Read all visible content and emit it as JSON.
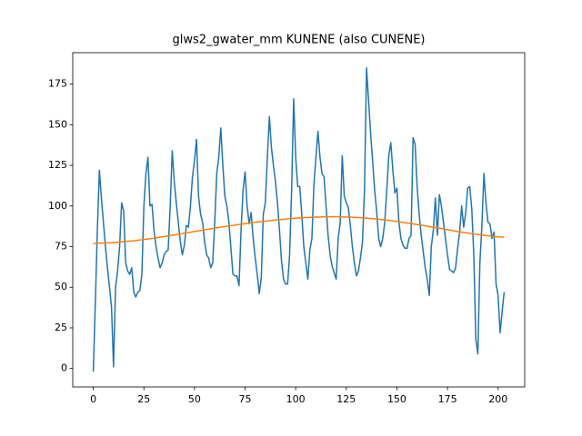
{
  "chart_data": {
    "type": "line",
    "title": "glws2_gwater_mm KUNENE (also CUNENE)",
    "x": [
      0,
      1,
      2,
      3,
      4,
      5,
      6,
      7,
      8,
      9,
      10,
      11,
      12,
      13,
      14,
      15,
      16,
      17,
      18,
      19,
      20,
      21,
      22,
      23,
      24,
      25,
      26,
      27,
      28,
      29,
      30,
      31,
      32,
      33,
      34,
      35,
      36,
      37,
      38,
      39,
      40,
      41,
      42,
      43,
      44,
      45,
      46,
      47,
      48,
      49,
      50,
      51,
      52,
      53,
      54,
      55,
      56,
      57,
      58,
      59,
      60,
      61,
      62,
      63,
      64,
      65,
      66,
      67,
      68,
      69,
      70,
      71,
      72,
      73,
      74,
      75,
      76,
      77,
      78,
      79,
      80,
      81,
      82,
      83,
      84,
      85,
      86,
      87,
      88,
      89,
      90,
      91,
      92,
      93,
      94,
      95,
      96,
      97,
      98,
      99,
      100,
      101,
      102,
      103,
      104,
      105,
      106,
      107,
      108,
      109,
      110,
      111,
      112,
      113,
      114,
      115,
      116,
      117,
      118,
      119,
      120,
      121,
      122,
      123,
      124,
      125,
      126,
      127,
      128,
      129,
      130,
      131,
      132,
      133,
      134,
      135,
      136,
      137,
      138,
      139,
      140,
      141,
      142,
      143,
      144,
      145,
      146,
      147,
      148,
      149,
      150,
      151,
      152,
      153,
      154,
      155,
      156,
      157,
      158,
      159,
      160,
      161,
      162,
      163,
      164,
      165,
      166,
      167,
      168,
      169,
      170,
      171,
      172,
      173,
      174,
      175,
      176,
      177,
      178,
      179,
      180,
      181,
      182,
      183,
      184,
      185,
      186,
      187,
      188,
      189,
      190,
      191,
      192,
      193,
      194,
      195,
      196,
      197,
      198,
      199,
      200,
      201,
      202,
      203
    ],
    "series": [
      {
        "color": "#1f77b4",
        "values": [
          -2,
          40,
          85,
          122,
          105,
          90,
          75,
          62,
          50,
          38,
          1,
          50,
          60,
          75,
          102,
          97,
          65,
          60,
          58,
          62,
          47,
          44,
          47,
          48,
          58,
          100,
          120,
          130,
          100,
          101,
          85,
          75,
          68,
          62,
          65,
          70,
          72,
          73,
          100,
          134,
          115,
          102,
          90,
          78,
          70,
          76,
          88,
          87,
          100,
          118,
          128,
          141,
          106,
          95,
          90,
          78,
          70,
          68,
          62,
          65,
          90,
          120,
          130,
          148,
          125,
          106,
          100,
          90,
          74,
          58,
          57,
          57,
          51,
          85,
          110,
          121,
          100,
          89,
          96,
          80,
          68,
          58,
          46,
          56,
          95,
          102,
          130,
          155,
          136,
          125,
          115,
          102,
          85,
          66,
          55,
          52,
          52,
          70,
          110,
          166,
          130,
          112,
          112,
          95,
          75,
          65,
          55,
          73,
          80,
          113,
          130,
          146,
          130,
          120,
          118,
          100,
          82,
          70,
          63,
          59,
          55,
          80,
          90,
          131,
          106,
          102,
          99,
          88,
          75,
          65,
          57,
          60,
          68,
          78,
          110,
          185,
          165,
          145,
          128,
          110,
          97,
          80,
          75,
          80,
          90,
          110,
          131,
          139,
          122,
          108,
          111,
          90,
          80,
          76,
          74,
          74,
          80,
          82,
          142,
          138,
          112,
          95,
          82,
          72,
          62,
          55,
          45,
          75,
          85,
          105,
          82,
          107,
          100,
          90,
          80,
          70,
          61,
          60,
          59,
          62,
          74,
          84,
          100,
          87,
          96,
          111,
          112,
          98,
          70,
          18,
          9,
          65,
          88,
          120,
          102,
          90,
          89,
          80,
          84,
          52,
          45,
          22,
          35,
          47
        ]
      },
      {
        "color": "#ff7f0e",
        "values": [
          77.0,
          77.0,
          77.1,
          77.1,
          77.2,
          77.2,
          77.3,
          77.3,
          77.4,
          77.4,
          77.5,
          77.6,
          77.7,
          77.8,
          77.9,
          78.0,
          78.2,
          78.3,
          78.4,
          78.5,
          78.6,
          78.8,
          78.9,
          79.1,
          79.2,
          79.4,
          79.6,
          79.7,
          79.9,
          80.0,
          80.2,
          80.4,
          80.6,
          80.8,
          81.0,
          81.2,
          81.4,
          81.6,
          81.8,
          82.0,
          82.2,
          82.4,
          82.6,
          82.8,
          83.0,
          83.3,
          83.5,
          83.7,
          83.9,
          84.1,
          84.3,
          84.5,
          84.7,
          84.9,
          85.1,
          85.4,
          85.6,
          85.8,
          86.0,
          86.2,
          86.4,
          86.6,
          86.8,
          87.0,
          87.2,
          87.4,
          87.5,
          87.7,
          87.9,
          88.1,
          88.3,
          88.5,
          88.6,
          88.8,
          89.0,
          89.2,
          89.3,
          89.5,
          89.7,
          89.8,
          90.0,
          90.1,
          90.3,
          90.4,
          90.6,
          90.7,
          90.8,
          91.0,
          91.1,
          91.3,
          91.4,
          91.5,
          91.6,
          91.7,
          91.8,
          92.0,
          92.1,
          92.2,
          92.3,
          92.4,
          92.5,
          92.6,
          92.6,
          92.7,
          92.8,
          92.9,
          92.9,
          93.0,
          93.1,
          93.1,
          93.2,
          93.2,
          93.2,
          93.3,
          93.3,
          93.3,
          93.3,
          93.3,
          93.4,
          93.4,
          93.4,
          93.4,
          93.3,
          93.3,
          93.2,
          93.2,
          93.2,
          93.1,
          93.1,
          93.0,
          93.0,
          92.9,
          92.8,
          92.7,
          92.6,
          92.5,
          92.4,
          92.3,
          92.2,
          92.1,
          92.0,
          91.9,
          91.7,
          91.6,
          91.4,
          91.3,
          91.1,
          91.0,
          90.8,
          90.7,
          90.5,
          90.3,
          90.1,
          89.9,
          89.7,
          89.6,
          89.4,
          89.2,
          89.0,
          88.8,
          88.6,
          88.4,
          88.2,
          88.0,
          87.8,
          87.6,
          87.3,
          87.1,
          86.9,
          86.7,
          86.5,
          86.3,
          86.1,
          85.8,
          85.6,
          85.4,
          85.2,
          85.0,
          84.7,
          84.5,
          84.3,
          84.1,
          83.9,
          83.7,
          83.5,
          83.4,
          83.2,
          83.0,
          82.8,
          82.6,
          82.4,
          82.3,
          82.1,
          82.0,
          81.8,
          81.7,
          81.6,
          81.4,
          81.3,
          81.1,
          81.0,
          80.9,
          80.9,
          80.8
        ]
      }
    ],
    "xlim": [
      -10.15,
      213.15
    ],
    "ylim": [
      -11.35,
      194.35
    ],
    "xticks": [
      0,
      25,
      50,
      75,
      100,
      125,
      150,
      175,
      200
    ],
    "yticks": [
      0,
      25,
      50,
      75,
      100,
      125,
      150,
      175
    ],
    "grid": false
  }
}
